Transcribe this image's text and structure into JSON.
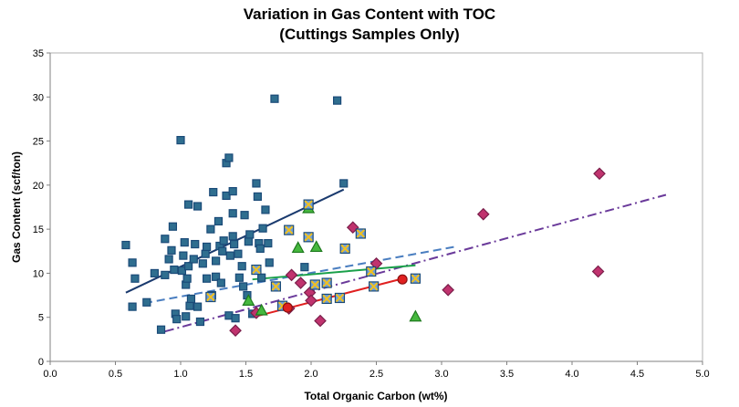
{
  "chart_data": {
    "type": "scatter",
    "title": "Variation in Gas Content with TOC",
    "subtitle": "(Cuttings Samples Only)",
    "xlabel": "Total Organic Carbon (wt%)",
    "ylabel": "Gas Content (scf/ton)",
    "xlim": [
      0,
      5
    ],
    "ylim": [
      0,
      35
    ],
    "xticks": [
      "0.0",
      "0.5",
      "1.0",
      "1.5",
      "2.0",
      "2.5",
      "3.0",
      "3.5",
      "4.0",
      "4.5",
      "5.0"
    ],
    "yticks": [
      "0",
      "5",
      "10",
      "15",
      "20",
      "25",
      "30",
      "35"
    ],
    "grid": false,
    "legend": "none",
    "series": [
      {
        "marker": "square",
        "color": "#1a4a78",
        "fill": "#2f6e8f",
        "points": [
          [
            0.58,
            13.2
          ],
          [
            0.63,
            11.2
          ],
          [
            0.63,
            6.2
          ],
          [
            0.65,
            9.4
          ],
          [
            0.74,
            6.7
          ],
          [
            0.8,
            10.0
          ],
          [
            0.85,
            3.6
          ],
          [
            0.88,
            13.9
          ],
          [
            0.88,
            9.8
          ],
          [
            0.91,
            11.6
          ],
          [
            0.93,
            12.6
          ],
          [
            0.94,
            15.3
          ],
          [
            0.95,
            10.4
          ],
          [
            0.96,
            5.4
          ],
          [
            0.97,
            4.8
          ],
          [
            1.0,
            25.1
          ],
          [
            1.01,
            10.3
          ],
          [
            1.02,
            12.0
          ],
          [
            1.03,
            13.5
          ],
          [
            1.04,
            8.7
          ],
          [
            1.04,
            5.1
          ],
          [
            1.05,
            9.4
          ],
          [
            1.06,
            17.8
          ],
          [
            1.06,
            10.8
          ],
          [
            1.07,
            6.3
          ],
          [
            1.08,
            7.1
          ],
          [
            1.1,
            11.6
          ],
          [
            1.11,
            13.3
          ],
          [
            1.13,
            17.6
          ],
          [
            1.13,
            6.2
          ],
          [
            1.15,
            4.5
          ],
          [
            1.17,
            11.1
          ],
          [
            1.19,
            12.2
          ],
          [
            1.2,
            13.0
          ],
          [
            1.2,
            9.4
          ],
          [
            1.23,
            15.0
          ],
          [
            1.24,
            7.5
          ],
          [
            1.25,
            19.2
          ],
          [
            1.27,
            11.4
          ],
          [
            1.27,
            9.6
          ],
          [
            1.29,
            15.9
          ],
          [
            1.3,
            13.1
          ],
          [
            1.31,
            8.9
          ],
          [
            1.32,
            12.5
          ],
          [
            1.33,
            13.7
          ],
          [
            1.35,
            22.5
          ],
          [
            1.35,
            18.8
          ],
          [
            1.37,
            5.2
          ],
          [
            1.37,
            23.1
          ],
          [
            1.38,
            12.0
          ],
          [
            1.4,
            16.8
          ],
          [
            1.4,
            14.2
          ],
          [
            1.4,
            19.3
          ],
          [
            1.41,
            13.3
          ],
          [
            1.42,
            4.9
          ],
          [
            1.44,
            12.2
          ],
          [
            1.45,
            9.5
          ],
          [
            1.47,
            10.8
          ],
          [
            1.48,
            8.5
          ],
          [
            1.49,
            16.6
          ],
          [
            1.51,
            7.5
          ],
          [
            1.52,
            13.6
          ],
          [
            1.53,
            14.4
          ],
          [
            1.55,
            5.4
          ],
          [
            1.58,
            20.2
          ],
          [
            1.59,
            18.7
          ],
          [
            1.6,
            13.4
          ],
          [
            1.61,
            12.8
          ],
          [
            1.62,
            9.5
          ],
          [
            1.63,
            15.1
          ],
          [
            1.65,
            17.2
          ],
          [
            1.67,
            13.4
          ],
          [
            1.68,
            11.2
          ],
          [
            1.72,
            29.8
          ],
          [
            1.95,
            10.7
          ],
          [
            2.2,
            29.6
          ],
          [
            2.25,
            20.2
          ]
        ]
      },
      {
        "marker": "diamond",
        "color": "#7a1e4a",
        "fill": "#c0336e",
        "points": [
          [
            1.42,
            3.5
          ],
          [
            1.58,
            5.5
          ],
          [
            1.83,
            6.0
          ],
          [
            1.85,
            9.8
          ],
          [
            1.92,
            8.9
          ],
          [
            1.99,
            7.8
          ],
          [
            2.0,
            6.9
          ],
          [
            2.07,
            4.6
          ],
          [
            2.32,
            15.2
          ],
          [
            2.5,
            11.1
          ],
          [
            3.05,
            8.1
          ],
          [
            3.32,
            16.7
          ],
          [
            4.21,
            21.3
          ],
          [
            4.2,
            10.2
          ]
        ]
      },
      {
        "marker": "triangle",
        "color": "#1e7a1e",
        "fill": "#46b83e",
        "points": [
          [
            1.52,
            6.9
          ],
          [
            1.62,
            5.8
          ],
          [
            1.9,
            12.9
          ],
          [
            1.98,
            17.4
          ],
          [
            2.04,
            13.0
          ],
          [
            2.8,
            5.1
          ]
        ]
      },
      {
        "marker": "square-x",
        "color": "#1a4a78",
        "fill": "#6f9fd8",
        "points": [
          [
            1.23,
            7.3
          ],
          [
            1.58,
            10.4
          ],
          [
            1.73,
            8.5
          ],
          [
            1.78,
            6.3
          ],
          [
            1.83,
            14.9
          ],
          [
            1.98,
            17.8
          ],
          [
            1.98,
            14.1
          ],
          [
            2.03,
            8.7
          ],
          [
            2.12,
            8.9
          ],
          [
            2.22,
            7.2
          ],
          [
            2.26,
            12.8
          ],
          [
            2.38,
            14.5
          ],
          [
            2.46,
            10.2
          ],
          [
            2.48,
            8.5
          ],
          [
            2.12,
            7.1
          ],
          [
            2.8,
            9.4
          ]
        ]
      },
      {
        "marker": "circle",
        "color": "#8a1010",
        "fill": "#e02020",
        "points": [
          [
            1.82,
            6.1
          ],
          [
            2.7,
            9.3
          ]
        ]
      }
    ],
    "trendlines": [
      {
        "style": "solid",
        "color": "#1a3a6e",
        "x": [
          0.58,
          2.25
        ],
        "y": [
          7.8,
          19.5
        ]
      },
      {
        "style": "dashed",
        "color": "#4a7ec0",
        "x": [
          0.72,
          3.1
        ],
        "y": [
          6.6,
          13.0
        ]
      },
      {
        "style": "dashdot",
        "color": "#6a3a9a",
        "x": [
          0.88,
          4.72
        ],
        "y": [
          3.4,
          18.9
        ]
      },
      {
        "style": "solid",
        "color": "#1aa04a",
        "x": [
          1.55,
          2.8
        ],
        "y": [
          9.3,
          10.9
        ]
      },
      {
        "style": "solid",
        "color": "#e02020",
        "x": [
          1.6,
          2.73
        ],
        "y": [
          5.2,
          9.5
        ]
      }
    ]
  }
}
